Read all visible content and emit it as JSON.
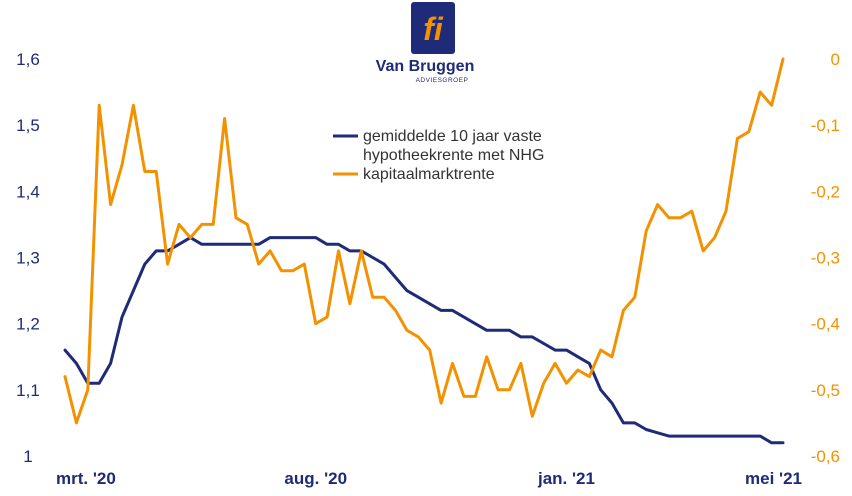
{
  "logo": {
    "wordmark": "Van Bruggen",
    "tagline": "ADVIESGROEP",
    "monogram": "fi",
    "colors": {
      "navy": "#1f2a78",
      "orange": "#f39200"
    }
  },
  "chart_data": {
    "type": "line",
    "grid": false,
    "legend_position": "top-center",
    "x_tick_labels": [
      "mrt. '20",
      "aug. '20",
      "jan. '21",
      "mei '21"
    ],
    "x_tick_index": [
      1,
      22,
      44,
      60
    ],
    "n_points": 64,
    "y_left": {
      "ticks": [
        "1",
        "1,1",
        "1,2",
        "1,3",
        "1,4",
        "1,5",
        "1,6"
      ],
      "range": [
        1.0,
        1.6
      ],
      "color": "#1f2a78"
    },
    "y_right": {
      "ticks": [
        "-0,6",
        "-0,5",
        "-0,4",
        "-0,3",
        "-0,2",
        "-0,1",
        "0"
      ],
      "range": [
        -0.6,
        0.0
      ],
      "color": "#f39200"
    },
    "series": [
      {
        "name": "gemiddelde 10 jaar vaste hypotheekrente met NHG",
        "legend_lines": [
          "gemiddelde 10 jaar vaste",
          "hypotheekrente met NHG"
        ],
        "axis": "left",
        "color": "#1f2a78",
        "values": [
          1.16,
          1.14,
          1.11,
          1.11,
          1.14,
          1.21,
          1.25,
          1.29,
          1.31,
          1.31,
          1.32,
          1.33,
          1.32,
          1.32,
          1.32,
          1.32,
          1.32,
          1.32,
          1.33,
          1.33,
          1.33,
          1.33,
          1.33,
          1.32,
          1.32,
          1.31,
          1.31,
          1.3,
          1.29,
          1.27,
          1.25,
          1.24,
          1.23,
          1.22,
          1.22,
          1.21,
          1.2,
          1.19,
          1.19,
          1.19,
          1.18,
          1.18,
          1.17,
          1.16,
          1.16,
          1.15,
          1.14,
          1.1,
          1.08,
          1.05,
          1.05,
          1.04,
          1.035,
          1.03,
          1.03,
          1.03,
          1.03,
          1.03,
          1.03,
          1.03,
          1.03,
          1.03,
          1.02,
          1.02
        ]
      },
      {
        "name": "kapitaalmarktrente",
        "legend_lines": [
          "kapitaalmarktrente"
        ],
        "axis": "right",
        "color": "#f39200",
        "values": [
          -0.48,
          -0.55,
          -0.5,
          -0.07,
          -0.22,
          -0.16,
          -0.07,
          -0.17,
          -0.17,
          -0.31,
          -0.25,
          -0.27,
          -0.25,
          -0.25,
          -0.09,
          -0.24,
          -0.25,
          -0.31,
          -0.29,
          -0.32,
          -0.32,
          -0.31,
          -0.4,
          -0.39,
          -0.29,
          -0.37,
          -0.29,
          -0.36,
          -0.36,
          -0.38,
          -0.41,
          -0.42,
          -0.44,
          -0.52,
          -0.46,
          -0.51,
          -0.51,
          -0.45,
          -0.5,
          -0.5,
          -0.46,
          -0.54,
          -0.49,
          -0.46,
          -0.49,
          -0.47,
          -0.48,
          -0.44,
          -0.45,
          -0.38,
          -0.36,
          -0.26,
          -0.22,
          -0.24,
          -0.24,
          -0.23,
          -0.29,
          -0.27,
          -0.23,
          -0.12,
          -0.11,
          -0.05,
          -0.07,
          0.0
        ]
      }
    ]
  }
}
